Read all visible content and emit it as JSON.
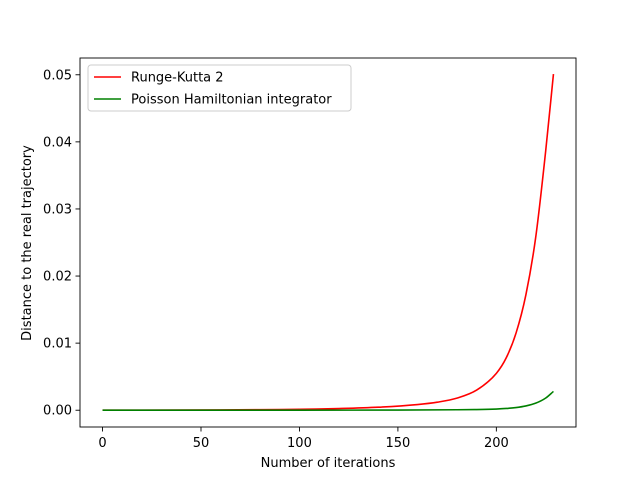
{
  "chart_data": {
    "type": "line",
    "title": "",
    "xlabel": "Number of iterations",
    "ylabel": "Distance to the real trajectory",
    "xlim": [
      -11.45,
      240.45
    ],
    "ylim": [
      -0.0025,
      0.0525
    ],
    "xticks": [
      0,
      50,
      100,
      150,
      200
    ],
    "yticks": [
      0.0,
      0.01,
      0.02,
      0.03,
      0.04,
      0.05
    ],
    "xtick_labels": [
      "0",
      "50",
      "100",
      "150",
      "200"
    ],
    "ytick_labels": [
      "0.00",
      "0.01",
      "0.02",
      "0.03",
      "0.04",
      "0.05"
    ],
    "grid": false,
    "legend": {
      "location": "upper-left"
    },
    "series": [
      {
        "name": "Runge-Kutta 2",
        "color": "#ff0000",
        "x": [
          0,
          20,
          40,
          60,
          80,
          100,
          120,
          140,
          160,
          170,
          180,
          190,
          200,
          205,
          210,
          215,
          220,
          225,
          229
        ],
        "y": [
          0.0,
          1e-05,
          2e-05,
          4e-05,
          8e-05,
          0.00014,
          0.00025,
          0.00045,
          0.00085,
          0.0012,
          0.0018,
          0.003,
          0.0055,
          0.0078,
          0.0115,
          0.0172,
          0.0258,
          0.0385,
          0.0501
        ]
      },
      {
        "name": "Poisson Hamiltonian integrator",
        "color": "#008000",
        "x": [
          0,
          50,
          100,
          150,
          180,
          190,
          200,
          205,
          210,
          215,
          220,
          225,
          229
        ],
        "y": [
          0.0,
          0.0,
          1e-05,
          3e-05,
          7e-05,
          0.0001,
          0.00018,
          0.00026,
          0.0004,
          0.00064,
          0.00105,
          0.0018,
          0.0028
        ]
      }
    ]
  }
}
